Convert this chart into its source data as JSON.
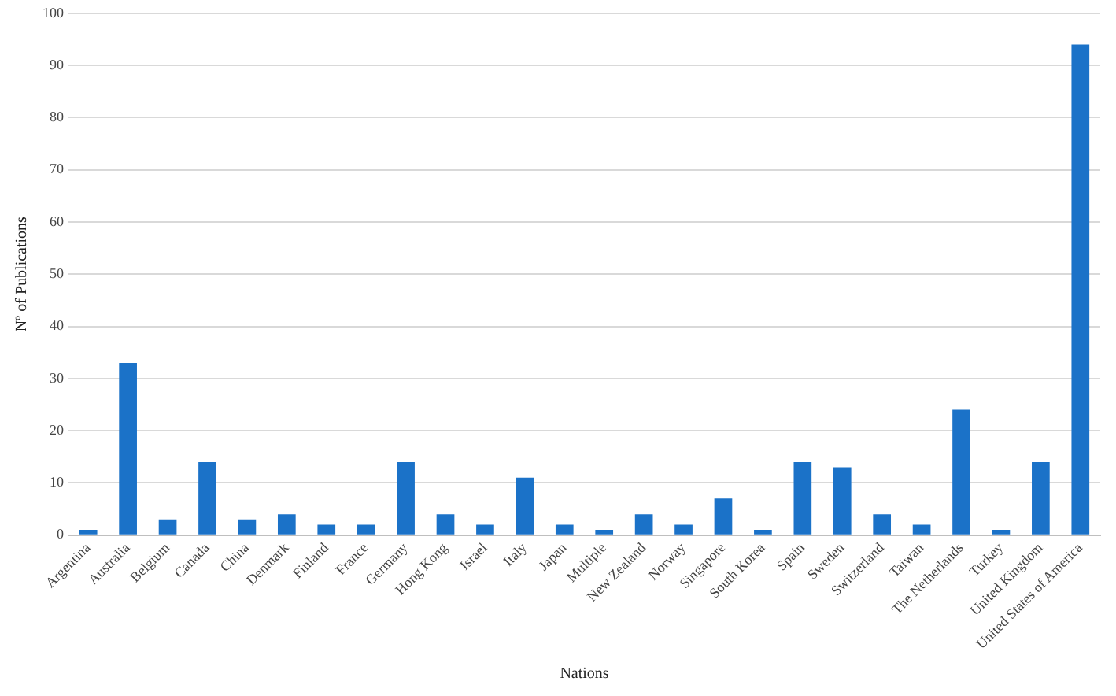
{
  "chart_data": {
    "type": "bar",
    "xlabel": "Nations",
    "ylabel": "Nº of Publications",
    "categories": [
      "Argentina",
      "Australia",
      "Belgium",
      "Canada",
      "China",
      "Denmark",
      "Finland",
      "France",
      "Germany",
      "Hong Kong",
      "Israel",
      "Italy",
      "Japan",
      "Multiple",
      "New Zealand",
      "Norway",
      "Singapore",
      "South Korea",
      "Spain",
      "Sweden",
      "Switzerland",
      "Taiwan",
      "The Netherlands",
      "Turkey",
      "United Kingdom",
      "United States of America"
    ],
    "values": [
      1,
      33,
      3,
      14,
      3,
      4,
      2,
      2,
      14,
      4,
      2,
      11,
      2,
      1,
      4,
      2,
      7,
      1,
      14,
      13,
      4,
      2,
      24,
      1,
      14,
      94
    ],
    "color": "#1b72c8",
    "ylim": [
      0,
      100
    ],
    "yticks": [
      0,
      10,
      20,
      30,
      40,
      50,
      60,
      70,
      80,
      90,
      100
    ],
    "grid": "y",
    "legend": false
  }
}
